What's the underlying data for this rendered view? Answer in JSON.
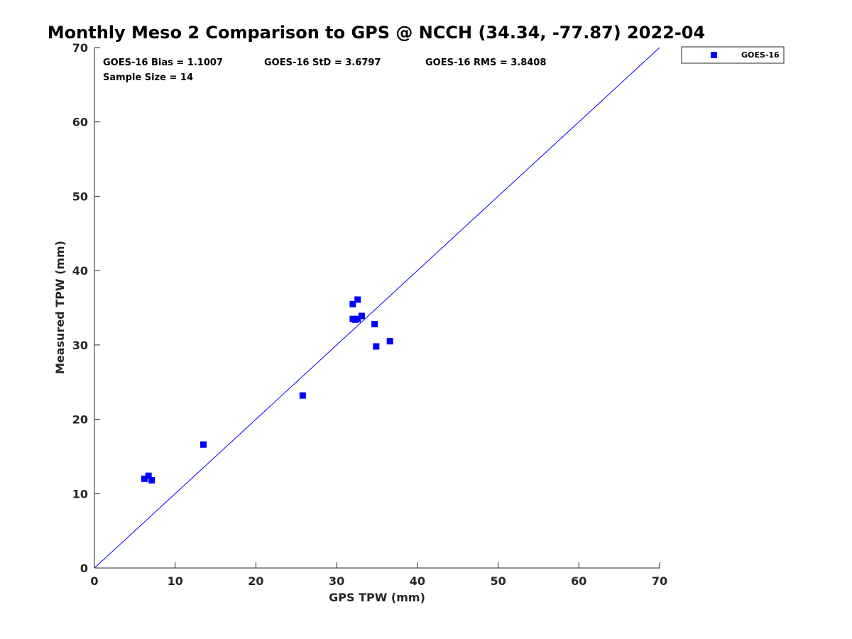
{
  "chart_data": {
    "type": "scatter",
    "title": "Monthly Meso 2 Comparison to GPS @ NCCH (34.34, -77.87) 2022-04",
    "xlabel": "GPS TPW (mm)",
    "ylabel": "Measured TPW (mm)",
    "xlim": [
      0,
      70
    ],
    "ylim": [
      0,
      70
    ],
    "xticks": [
      0,
      10,
      20,
      30,
      40,
      50,
      60,
      70
    ],
    "yticks": [
      0,
      10,
      20,
      30,
      40,
      50,
      60,
      70
    ],
    "grid": false,
    "legend_position": "outside-top-right",
    "reference_line": {
      "from": [
        0,
        0
      ],
      "to": [
        70,
        70
      ],
      "color": "#0000ff"
    },
    "stats": {
      "bias": "GOES-16 Bias = 1.1007",
      "std": "GOES-16 StD = 3.6797",
      "rms": "GOES-16 RMS = 3.8408",
      "sample_size": "Sample Size = 14"
    },
    "series": [
      {
        "name": "GOES-16",
        "color": "#0000ff",
        "marker": "square",
        "points": [
          {
            "x": 6.2,
            "y": 12.0
          },
          {
            "x": 6.7,
            "y": 12.4
          },
          {
            "x": 7.1,
            "y": 11.8
          },
          {
            "x": 13.5,
            "y": 16.6
          },
          {
            "x": 25.8,
            "y": 23.2
          },
          {
            "x": 32.0,
            "y": 35.5
          },
          {
            "x": 32.6,
            "y": 36.1
          },
          {
            "x": 32.0,
            "y": 33.5
          },
          {
            "x": 32.6,
            "y": 33.5
          },
          {
            "x": 33.1,
            "y": 33.9
          },
          {
            "x": 34.7,
            "y": 32.8
          },
          {
            "x": 34.9,
            "y": 29.8
          },
          {
            "x": 36.6,
            "y": 30.5
          },
          {
            "x": 32.3,
            "y": 33.4
          }
        ]
      }
    ]
  }
}
